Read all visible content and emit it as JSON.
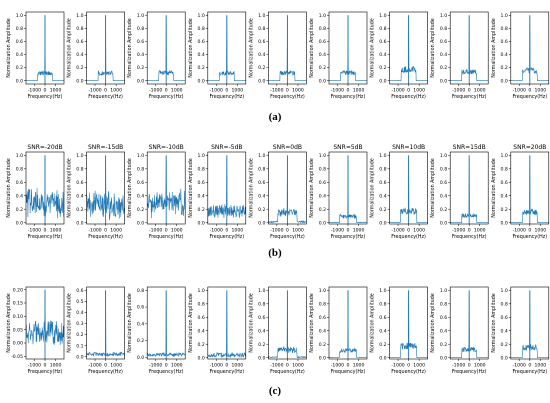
{
  "panel_labels": [
    "(a)",
    "(b)",
    "(c)"
  ],
  "chart_data": {
    "type": "line",
    "series_color": "#1f77b4",
    "xlabel": "Frequency(Hz)",
    "ylabel": "Normalization Amplitude",
    "xticks": [
      -1000,
      0,
      1000
    ],
    "xlim": [
      -1800,
      1800
    ],
    "grid": false,
    "rows": [
      {
        "label": "(a)",
        "ylim": [
          -0.05,
          1.05
        ],
        "yticks": [
          0.0,
          0.2,
          0.4,
          0.6,
          0.8,
          1.0
        ],
        "ytick_labels": [
          "0.0",
          "0.2",
          "0.4",
          "0.6",
          "0.8",
          "1.0"
        ],
        "subplots": [
          {
            "title": "",
            "peak": 1.0,
            "band_level": 0.15,
            "band_halfwidth": 700,
            "noise_level": 0.0
          },
          {
            "title": "",
            "peak": 1.0,
            "band_level": 0.15,
            "band_halfwidth": 700,
            "noise_level": 0.0
          },
          {
            "title": "",
            "peak": 1.0,
            "band_level": 0.16,
            "band_halfwidth": 700,
            "noise_level": 0.0
          },
          {
            "title": "",
            "peak": 1.0,
            "band_level": 0.15,
            "band_halfwidth": 700,
            "noise_level": 0.0
          },
          {
            "title": "",
            "peak": 1.0,
            "band_level": 0.15,
            "band_halfwidth": 700,
            "noise_level": 0.0
          },
          {
            "title": "",
            "peak": 1.0,
            "band_level": 0.16,
            "band_halfwidth": 700,
            "noise_level": 0.0
          },
          {
            "title": "",
            "peak": 1.0,
            "band_level": 0.22,
            "band_halfwidth": 700,
            "noise_level": 0.0
          },
          {
            "title": "",
            "peak": 1.0,
            "band_level": 0.17,
            "band_halfwidth": 700,
            "noise_level": 0.0
          },
          {
            "title": "",
            "peak": 1.0,
            "band_level": 0.2,
            "band_halfwidth": 700,
            "noise_level": 0.0
          }
        ]
      },
      {
        "label": "(b)",
        "ylim": [
          -0.02,
          1.05
        ],
        "yticks": [
          0.0,
          0.2,
          0.4,
          0.6,
          0.8,
          1.0
        ],
        "ytick_labels": [
          "0.0",
          "0.2",
          "0.4",
          "0.6",
          "0.8",
          "1.0"
        ],
        "subplots": [
          {
            "title": "SNR=-20dB",
            "peak": 1.0,
            "band_level": 0.38,
            "band_halfwidth": 1800,
            "noise_level": 0.35
          },
          {
            "title": "SNR=-15dB",
            "peak": 1.0,
            "band_level": 0.33,
            "band_halfwidth": 1800,
            "noise_level": 0.3
          },
          {
            "title": "SNR=-10dB",
            "peak": 1.0,
            "band_level": 0.38,
            "band_halfwidth": 1800,
            "noise_level": 0.32
          },
          {
            "title": "SNR=-5dB",
            "peak": 1.0,
            "band_level": 0.22,
            "band_halfwidth": 1800,
            "noise_level": 0.15
          },
          {
            "title": "SNR=0dB",
            "peak": 1.0,
            "band_level": 0.2,
            "band_halfwidth": 900,
            "noise_level": 0.06
          },
          {
            "title": "SNR=5dB",
            "peak": 1.0,
            "band_level": 0.12,
            "band_halfwidth": 800,
            "noise_level": 0.02
          },
          {
            "title": "SNR=10dB",
            "peak": 1.0,
            "band_level": 0.22,
            "band_halfwidth": 750,
            "noise_level": 0.01
          },
          {
            "title": "SNR=15dB",
            "peak": 1.0,
            "band_level": 0.14,
            "band_halfwidth": 700,
            "noise_level": 0.005
          },
          {
            "title": "SNR=20dB",
            "peak": 1.0,
            "band_level": 0.2,
            "band_halfwidth": 700,
            "noise_level": 0.0
          }
        ]
      },
      {
        "label": "(c)",
        "subplots": [
          {
            "title": "",
            "ylim": [
              -0.06,
              0.21
            ],
            "yticks": [
              -0.05,
              0.0,
              0.05,
              0.1,
              0.15,
              0.2
            ],
            "ytick_labels": [
              "-0.05",
              "0.00",
              "0.05",
              "0.10",
              "0.15",
              "0.20"
            ],
            "peak": 0.2,
            "band_level": 0.05,
            "band_halfwidth": 1800,
            "noise_level": 0.09
          },
          {
            "title": "",
            "ylim": [
              -0.02,
              0.63
            ],
            "yticks": [
              0.0,
              0.1,
              0.2,
              0.3,
              0.4,
              0.5,
              0.6
            ],
            "ytick_labels": [
              "0.0",
              "0.1",
              "0.2",
              "0.3",
              "0.4",
              "0.5",
              "0.6"
            ],
            "peak": 0.6,
            "band_level": 0.03,
            "band_halfwidth": 1800,
            "noise_level": 0.03
          },
          {
            "title": "",
            "ylim": [
              -0.02,
              0.84
            ],
            "yticks": [
              0.0,
              0.2,
              0.4,
              0.6,
              0.8
            ],
            "ytick_labels": [
              "0.0",
              "0.2",
              "0.4",
              "0.6",
              "0.8"
            ],
            "peak": 0.8,
            "band_level": 0.04,
            "band_halfwidth": 1800,
            "noise_level": 0.04
          },
          {
            "title": "",
            "ylim": [
              -0.02,
              1.05
            ],
            "yticks": [
              0.0,
              0.2,
              0.4,
              0.6,
              0.8,
              1.0
            ],
            "ytick_labels": [
              "0.0",
              "0.2",
              "0.4",
              "0.6",
              "0.8",
              "1.0"
            ],
            "peak": 1.0,
            "band_level": 0.05,
            "band_halfwidth": 1800,
            "noise_level": 0.06
          },
          {
            "title": "",
            "ylim": [
              -0.02,
              1.05
            ],
            "yticks": [
              0.0,
              0.2,
              0.4,
              0.6,
              0.8,
              1.0
            ],
            "ytick_labels": [
              "0.0",
              "0.2",
              "0.4",
              "0.6",
              "0.8",
              "1.0"
            ],
            "peak": 1.0,
            "band_level": 0.15,
            "band_halfwidth": 900,
            "noise_level": 0.04
          },
          {
            "title": "",
            "ylim": [
              -0.02,
              1.05
            ],
            "yticks": [
              0.0,
              0.2,
              0.4,
              0.6,
              0.8,
              1.0
            ],
            "ytick_labels": [
              "0.0",
              "0.2",
              "0.4",
              "0.6",
              "0.8",
              "1.0"
            ],
            "peak": 1.0,
            "band_level": 0.14,
            "band_halfwidth": 800,
            "noise_level": 0.01
          },
          {
            "title": "",
            "ylim": [
              -0.02,
              1.05
            ],
            "yticks": [
              0.0,
              0.2,
              0.4,
              0.6,
              0.8,
              1.0
            ],
            "ytick_labels": [
              "0.0",
              "0.2",
              "0.4",
              "0.6",
              "0.8",
              "1.0"
            ],
            "peak": 1.0,
            "band_level": 0.22,
            "band_halfwidth": 750,
            "noise_level": 0.0
          },
          {
            "title": "",
            "ylim": [
              -0.02,
              1.05
            ],
            "yticks": [
              0.0,
              0.2,
              0.4,
              0.6,
              0.8,
              1.0
            ],
            "ytick_labels": [
              "0.0",
              "0.2",
              "0.4",
              "0.6",
              "0.8",
              "1.0"
            ],
            "peak": 1.0,
            "band_level": 0.16,
            "band_halfwidth": 700,
            "noise_level": 0.0
          },
          {
            "title": "",
            "ylim": [
              -0.02,
              1.05
            ],
            "yticks": [
              0.0,
              0.2,
              0.4,
              0.6,
              0.8,
              1.0
            ],
            "ytick_labels": [
              "0.0",
              "0.2",
              "0.4",
              "0.6",
              "0.8",
              "1.0"
            ],
            "peak": 1.0,
            "band_level": 0.2,
            "band_halfwidth": 700,
            "noise_level": 0.0
          }
        ]
      }
    ]
  }
}
